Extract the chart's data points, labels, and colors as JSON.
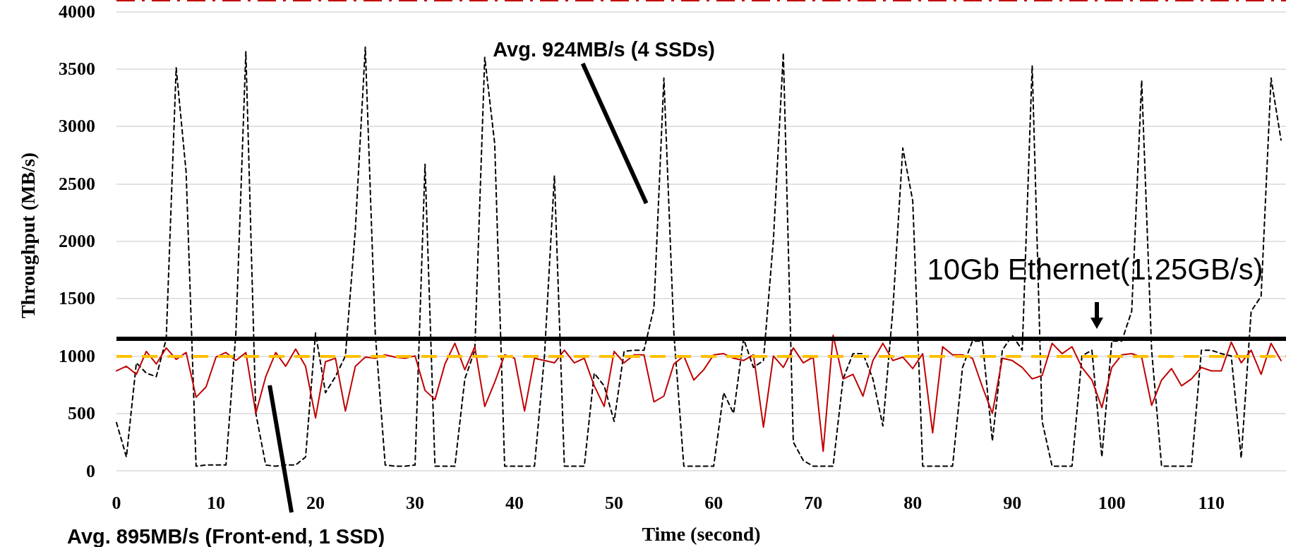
{
  "chart_data": {
    "type": "line",
    "xlabel": "Time (second)",
    "ylabel": "Throughput (MB/s)",
    "x": [
      0,
      1,
      2,
      3,
      4,
      5,
      6,
      7,
      8,
      9,
      10,
      11,
      12,
      13,
      14,
      15,
      16,
      17,
      18,
      19,
      20,
      21,
      22,
      23,
      24,
      25,
      26,
      27,
      28,
      29,
      30,
      31,
      32,
      33,
      34,
      35,
      36,
      37,
      38,
      39,
      40,
      41,
      42,
      43,
      44,
      45,
      46,
      47,
      48,
      49,
      50,
      51,
      52,
      53,
      54,
      55,
      56,
      57,
      58,
      59,
      60,
      61,
      62,
      63,
      64,
      65,
      66,
      67,
      68,
      69,
      70,
      71,
      72,
      73,
      74,
      75,
      76,
      77,
      78,
      79,
      80,
      81,
      82,
      83,
      84,
      85,
      86,
      87,
      88,
      89,
      90,
      91,
      92,
      93,
      94,
      95,
      96,
      97,
      98,
      99,
      100,
      101,
      102,
      103,
      104,
      105,
      106,
      107,
      108,
      109,
      110,
      111,
      112,
      113,
      114,
      115,
      116,
      117
    ],
    "series": [
      {
        "color": "#000000",
        "line_style": "dashed",
        "values": [
          420,
          120,
          940,
          850,
          820,
          1150,
          3510,
          2600,
          40,
          50,
          50,
          50,
          1200,
          3650,
          500,
          50,
          40,
          50,
          50,
          120,
          1200,
          680,
          820,
          1000,
          2100,
          3690,
          1200,
          50,
          40,
          40,
          50,
          2670,
          40,
          40,
          40,
          800,
          1050,
          3600,
          2850,
          40,
          40,
          40,
          40,
          1000,
          2570,
          40,
          40,
          40,
          850,
          740,
          430,
          1040,
          1050,
          1050,
          1420,
          3420,
          1200,
          40,
          40,
          40,
          40,
          680,
          500,
          1150,
          900,
          960,
          2010,
          3640,
          250,
          90,
          40,
          40,
          40,
          800,
          1020,
          1020,
          800,
          390,
          1400,
          2810,
          2350,
          40,
          40,
          40,
          40,
          900,
          1130,
          1130,
          260,
          1050,
          1180,
          1050,
          3530,
          430,
          40,
          40,
          40,
          1000,
          1050,
          120,
          1130,
          1130,
          1390,
          3400,
          1050,
          40,
          40,
          40,
          40,
          1050,
          1050,
          1020,
          1000,
          110,
          1390,
          1520,
          3420,
          2880
        ]
      },
      {
        "color": "#c00000",
        "line_style": "solid",
        "values": [
          870,
          910,
          840,
          1040,
          930,
          1070,
          970,
          1030,
          640,
          730,
          990,
          1030,
          960,
          1030,
          500,
          820,
          1030,
          910,
          1060,
          910,
          460,
          950,
          980,
          520,
          910,
          990,
          980,
          1010,
          990,
          980,
          1000,
          700,
          620,
          930,
          1110,
          880,
          1080,
          560,
          770,
          1010,
          980,
          520,
          980,
          960,
          940,
          1050,
          940,
          980,
          740,
          560,
          1040,
          940,
          1010,
          1010,
          600,
          650,
          930,
          1000,
          790,
          880,
          1010,
          1020,
          980,
          960,
          1010,
          380,
          1000,
          900,
          1070,
          940,
          990,
          170,
          1180,
          800,
          840,
          650,
          960,
          1110,
          960,
          990,
          890,
          1020,
          330,
          1080,
          1010,
          1010,
          980,
          730,
          500,
          980,
          960,
          900,
          800,
          830,
          1110,
          1020,
          1080,
          900,
          790,
          550,
          900,
          1010,
          1020,
          990,
          570,
          790,
          890,
          740,
          800,
          900,
          870,
          870,
          1120,
          940,
          1050,
          840,
          1110,
          960
        ]
      }
    ],
    "xlim": [
      0,
      117.5
    ],
    "xticks": [
      0,
      10,
      20,
      30,
      40,
      50,
      60,
      70,
      80,
      90,
      100,
      110
    ],
    "ylim": [
      0,
      4100
    ],
    "yticks": [
      0,
      500,
      1000,
      1500,
      2000,
      2500,
      3000,
      3500,
      4000
    ],
    "grid": "y",
    "marker": "none",
    "ref_lines": [
      {
        "axis": "y",
        "value": 1150,
        "label": "10Gb Ethernet(1.25GB/s)",
        "color": "#000000",
        "line_style": "solid"
      },
      {
        "axis": "y",
        "value": 1000,
        "color": "#ffc000",
        "line_style": "dashed"
      },
      {
        "axis": "y",
        "value": 4100,
        "color": "#c00000",
        "line_style": "dashed"
      }
    ],
    "annotations": [
      "Avg. 924MB/s (4 SSDs)",
      "Avg. 895MB/s (Front-end, 1 SSD)"
    ]
  }
}
